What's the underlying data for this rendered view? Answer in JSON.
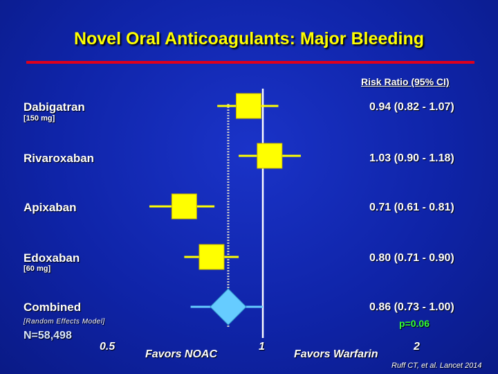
{
  "title": "Novel Oral Anticoagulants: Major Bleeding",
  "header": "Risk Ratio (95% CI)",
  "colors": {
    "title": "#ffff00",
    "rule": "#e0001b",
    "marker": "#ffff00",
    "diamond": "#66ccff",
    "pvalue": "#33ff33"
  },
  "chart_data": {
    "type": "forest",
    "xscale": "log",
    "xlim": [
      0.5,
      2
    ],
    "reference_line": 1,
    "pooled_line": 0.86,
    "xticks": [
      "0.5",
      "1",
      "2"
    ],
    "favors_left": "Favors NOAC",
    "favors_right": "Favors Warfarin",
    "rows": [
      {
        "name": "Dabigatran",
        "note": "[150 mg]",
        "rr": 0.94,
        "lo": 0.82,
        "hi": 1.07,
        "label": "0.94 (0.82 - 1.07)"
      },
      {
        "name": "Rivaroxaban",
        "note": "",
        "rr": 1.03,
        "lo": 0.9,
        "hi": 1.18,
        "label": "1.03 (0.90 - 1.18)"
      },
      {
        "name": "Apixaban",
        "note": "",
        "rr": 0.71,
        "lo": 0.61,
        "hi": 0.81,
        "label": "0.71 (0.61 - 0.81)"
      },
      {
        "name": "Edoxaban",
        "note": "[60 mg]",
        "rr": 0.8,
        "lo": 0.71,
        "hi": 0.9,
        "label": "0.80 (0.71 - 0.90)"
      }
    ],
    "combined": {
      "name": "Combined",
      "note": "[Random Effects Model]",
      "rr": 0.86,
      "lo": 0.73,
      "hi": 1.0,
      "label": "0.86 (0.73 - 1.00)",
      "p": "p=0.06"
    }
  },
  "n_label": "N=58,498",
  "citation": "Ruff CT, et al. Lancet 2014"
}
